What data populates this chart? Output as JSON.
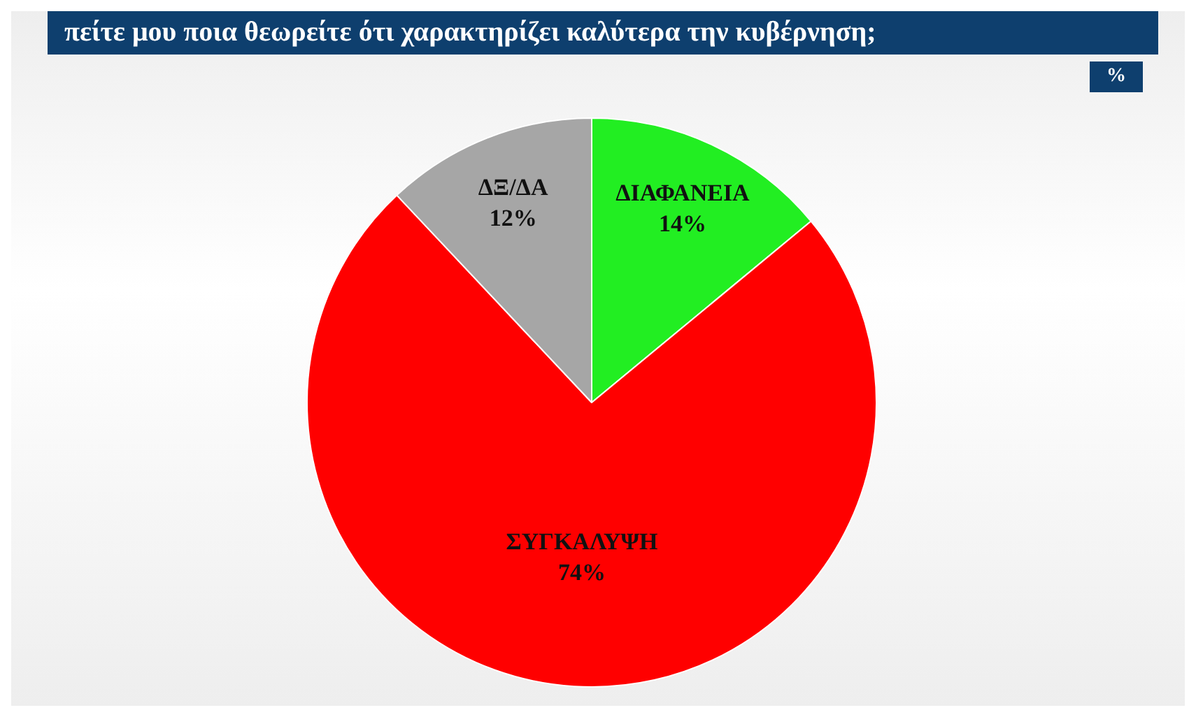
{
  "chart_data": {
    "type": "pie",
    "title": "πείτε μου ποια θεωρείτε ότι χαρακτηρίζει καλύτερα την κυβέρνηση;",
    "annotations": [
      "%"
    ],
    "categories": [
      "ΔΙΑΦΑΝΕΙΑ",
      "ΣΥΓΚΑΛΥΨΗ",
      "ΔΞ/ΔΑ"
    ],
    "values": [
      14,
      74,
      12
    ],
    "colors": [
      "#22ee22",
      "#ff0000",
      "#a6a6a6"
    ],
    "value_labels": [
      "14%",
      "74%",
      "12%"
    ]
  }
}
